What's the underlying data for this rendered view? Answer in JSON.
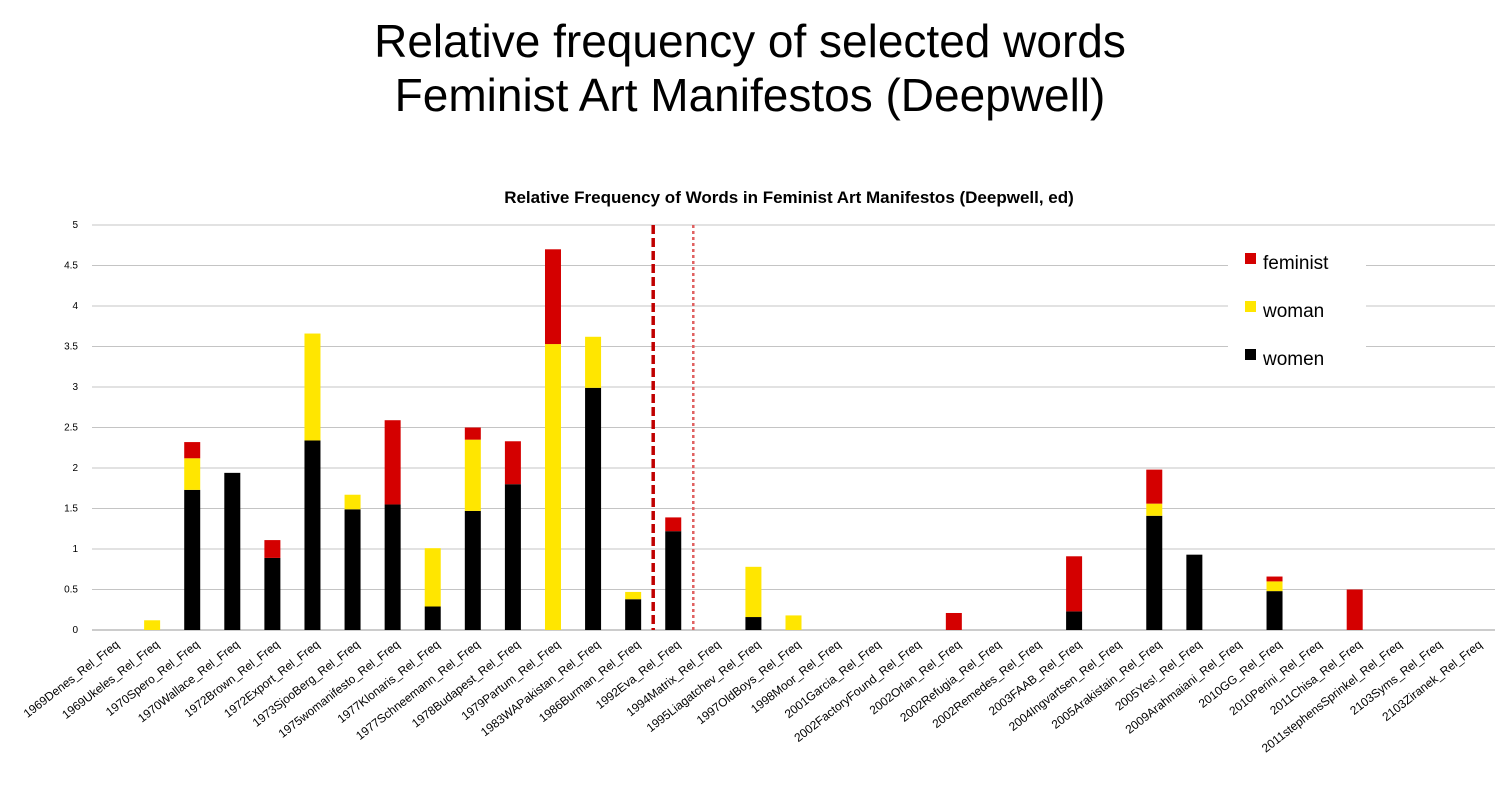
{
  "slide": {
    "title_line1": "Relative frequency of selected words",
    "title_line2": "Feminist Art Manifestos (Deepwell)"
  },
  "chart_data": {
    "type": "bar",
    "stacked": true,
    "title": "Relative Frequency of Words in Feminist Art Manifestos (Deepwell, ed)",
    "xlabel": "",
    "ylabel": "",
    "ylim": [
      0,
      5
    ],
    "yticks": [
      "0",
      "0.5",
      "1",
      "1.5",
      "2",
      "2.5",
      "3",
      "3.5",
      "4",
      "4.5",
      "5"
    ],
    "grid": true,
    "legend_position": "top-right",
    "categories": [
      "1969Denes_Rel_Freq",
      "1969Ukeles_Rel_Freq",
      "1970Spero_Rel_Freq",
      "1970Wallace_Rel_Freq",
      "1972Brown_Rel_Freq",
      "1972Export_Rel_Freq",
      "1973SjooBerg_Rel_Freq",
      "1975womanifesto_Rel_Freq",
      "1977Klonaris_Rel_Freq",
      "1977Schneemann_Rel_Freq",
      "1978Budapest_Rel_Freq",
      "1979Partum_Rel_Freq",
      "1983WAPakistan_Rel_Freq",
      "1986Burman_Rel_Freq",
      "1992Eva_Rel_Freq",
      "1994Matrix_Rel_Freq",
      "1995Liagatchev_Rel_Freq",
      "1997OldBoys_Rel_Freq",
      "1998Moor_Rel_Freq",
      "2001Garcia_Rel_Freq",
      "2002FactoryFound_Rel_Freq",
      "2002Orlan_Rel_Freq",
      "2002Refugia_Rel_Freq",
      "2002Remedes_Rel_Freq",
      "2003FAAB_Rel_Freq",
      "2004Ingvartsen_Rel_Freq",
      "2005Arakistain_Rel_Freq",
      "2005Yes!_Rel_Freq",
      "2009Arahmaiani_Rel_Freq",
      "2010GG_Rel_Freq",
      "2010Perini_Rel_Freq",
      "2011Chisa_Rel_Freq",
      "2011stephensSprinkel_Rel_Freq",
      "2103Syms_Rel_Freq",
      "2103Ziranek_Rel_Freq"
    ],
    "series": [
      {
        "name": "women",
        "color": "#000000",
        "values": [
          0,
          0,
          1.73,
          1.94,
          0.89,
          2.34,
          1.49,
          1.55,
          0.29,
          1.47,
          1.8,
          0,
          2.99,
          0.38,
          1.22,
          0,
          0.16,
          0,
          0,
          0,
          0,
          0,
          0,
          0,
          0.23,
          0,
          1.41,
          0.93,
          0,
          0.48,
          0,
          0,
          0,
          0,
          0
        ]
      },
      {
        "name": "woman",
        "color": "#ffe600",
        "values": [
          0,
          0.12,
          0.39,
          0,
          0,
          1.32,
          0.18,
          0,
          0.72,
          0.88,
          0,
          3.53,
          0.63,
          0.09,
          0,
          0,
          0.62,
          0.18,
          0,
          0,
          0,
          0,
          0,
          0,
          0,
          0,
          0.15,
          0,
          0,
          0.12,
          0,
          0,
          0,
          0,
          0
        ]
      },
      {
        "name": "feminist",
        "color": "#d40000",
        "values": [
          0,
          0,
          0.2,
          0,
          0.22,
          0,
          0,
          1.04,
          0,
          0.15,
          0.53,
          1.17,
          0,
          0,
          0.17,
          0,
          0,
          0,
          0,
          0,
          0,
          0.21,
          0,
          0,
          0.68,
          0,
          0.42,
          0,
          0,
          0.06,
          0,
          0.5,
          0,
          0,
          0
        ]
      }
    ],
    "legend": [
      {
        "label": "feminist",
        "color": "#d40000"
      },
      {
        "label": "woman",
        "color": "#ffe600"
      },
      {
        "label": "women",
        "color": "#000000"
      }
    ],
    "markers": [
      {
        "after_index": 13,
        "style": "dashed",
        "color": "#c00000"
      },
      {
        "after_index": 14,
        "style": "dotted",
        "color": "#e06060"
      }
    ]
  }
}
